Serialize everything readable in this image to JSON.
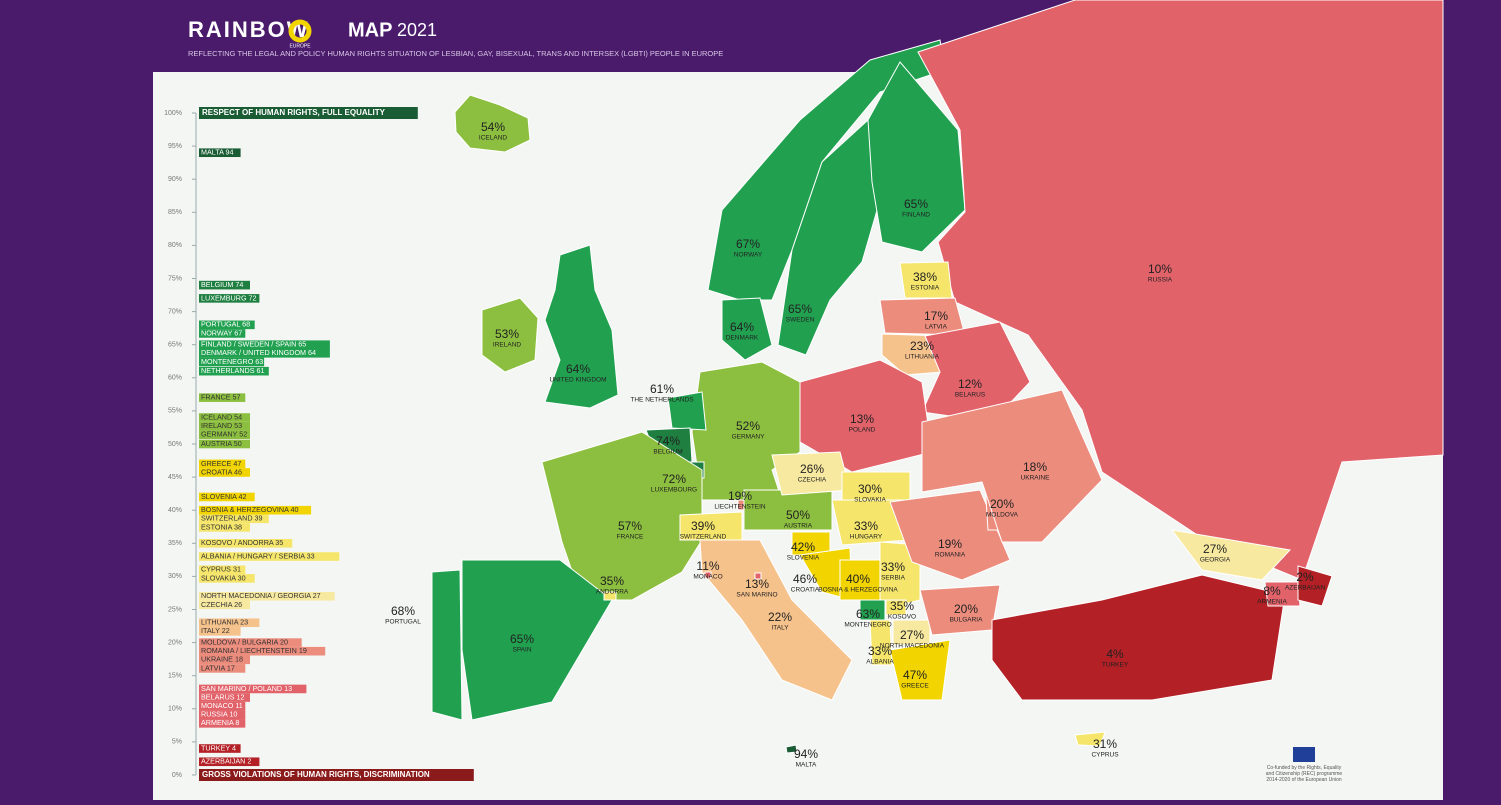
{
  "header": {
    "brand": "RAINBOW",
    "brand_sub": "EUROPE",
    "title": "MAP",
    "year": "2021",
    "subtitle": "REFLECTING THE LEGAL AND POLICY HUMAN RIGHTS SITUATION OF LESBIAN, GAY, BISEXUAL, TRANS AND INTERSEX (LGBTI) PEOPLE IN EUROPE"
  },
  "scale": {
    "top_label": "RESPECT OF HUMAN RIGHTS, FULL EQUALITY",
    "bottom_label": "GROSS VIOLATIONS OF HUMAN RIGHTS, DISCRIMINATION",
    "range": [
      0,
      100
    ],
    "ticks": [
      {
        "value": 100,
        "label": "100%"
      },
      {
        "value": 95,
        "label": "95%"
      },
      {
        "value": 90,
        "label": "90%"
      },
      {
        "value": 85,
        "label": "85%"
      },
      {
        "value": 80,
        "label": "80%"
      },
      {
        "value": 75,
        "label": "75%"
      },
      {
        "value": 70,
        "label": "70%"
      },
      {
        "value": 65,
        "label": "65%"
      },
      {
        "value": 60,
        "label": "60%"
      },
      {
        "value": 55,
        "label": "55%"
      },
      {
        "value": 50,
        "label": "50%"
      },
      {
        "value": 45,
        "label": "45%"
      },
      {
        "value": 40,
        "label": "40%"
      },
      {
        "value": 35,
        "label": "35%"
      },
      {
        "value": 30,
        "label": "30%"
      },
      {
        "value": 25,
        "label": "25%"
      },
      {
        "value": 20,
        "label": "20%"
      },
      {
        "value": 15,
        "label": "15%"
      },
      {
        "value": 10,
        "label": "10%"
      },
      {
        "value": 5,
        "label": "5%"
      },
      {
        "value": 0,
        "label": "0%"
      }
    ],
    "entries": [
      {
        "label": "MALTA 94",
        "value": 94,
        "color": "#1a5c34"
      },
      {
        "label": "BELGIUM 74",
        "value": 74,
        "color": "#1e7f40"
      },
      {
        "label": "LUXEMBURG 72",
        "value": 72,
        "color": "#1e7f40"
      },
      {
        "label": "PORTUGAL 68",
        "value": 68,
        "color": "#21a150"
      },
      {
        "label": "NORWAY 67",
        "value": 67,
        "color": "#21a150"
      },
      {
        "label": "FINLAND / SWEDEN / SPAIN 65",
        "value": 65,
        "color": "#21a150"
      },
      {
        "label": "DENMARK / UNITED KINGDOM 64",
        "value": 64,
        "color": "#21a150"
      },
      {
        "label": "MONTENEGRO 63",
        "value": 63,
        "color": "#21a150"
      },
      {
        "label": "NETHERLANDS 61",
        "value": 61,
        "color": "#21a150"
      },
      {
        "label": "FRANCE 57",
        "value": 57,
        "color": "#8cbf3f"
      },
      {
        "label": "ICELAND 54",
        "value": 54,
        "color": "#8cbf3f"
      },
      {
        "label": "IRELAND 53",
        "value": 53,
        "color": "#8cbf3f"
      },
      {
        "label": "GERMANY 52",
        "value": 52,
        "color": "#8cbf3f"
      },
      {
        "label": "AUSTRIA 50",
        "value": 50,
        "color": "#8cbf3f"
      },
      {
        "label": "GREECE 47",
        "value": 47,
        "color": "#f2d500"
      },
      {
        "label": "CROATIA 46",
        "value": 46,
        "color": "#f2d500"
      },
      {
        "label": "SLOVENIA 42",
        "value": 42,
        "color": "#f2d500"
      },
      {
        "label": "BOSNIA & HERZEGOVINA 40",
        "value": 40,
        "color": "#f2d500"
      },
      {
        "label": "SWITZERLAND 39",
        "value": 39,
        "color": "#f5e66b"
      },
      {
        "label": "ESTONIA 38",
        "value": 38,
        "color": "#f5e66b"
      },
      {
        "label": "KOSOVO / ANDORRA 35",
        "value": 35,
        "color": "#f5e66b"
      },
      {
        "label": "ALBANIA / HUNGARY / SERBIA 33",
        "value": 33,
        "color": "#f5e66b"
      },
      {
        "label": "CYPRUS 31",
        "value": 31,
        "color": "#f5e66b"
      },
      {
        "label": "SLOVAKIA 30",
        "value": 30,
        "color": "#f5e66b"
      },
      {
        "label": "NORTH MACEDONIA / GEORGIA 27",
        "value": 27,
        "color": "#f8e9a0"
      },
      {
        "label": "CZECHIA 26",
        "value": 26,
        "color": "#f8e9a0"
      },
      {
        "label": "LITHUANIA 23",
        "value": 23,
        "color": "#f6c28c"
      },
      {
        "label": "ITALY 22",
        "value": 22,
        "color": "#f6c28c"
      },
      {
        "label": "MOLDOVA / BULGARIA 20",
        "value": 20,
        "color": "#ec8c7d"
      },
      {
        "label": "ROMANIA / LIECHTENSTEIN 19",
        "value": 19,
        "color": "#ec8c7d"
      },
      {
        "label": "UKRAINE 18",
        "value": 18,
        "color": "#ec8c7d"
      },
      {
        "label": "LATVIA 17",
        "value": 17,
        "color": "#ec8c7d"
      },
      {
        "label": "SAN MARINO / POLAND 13",
        "value": 13,
        "color": "#e2626a"
      },
      {
        "label": "BELARUS 12",
        "value": 12,
        "color": "#e2626a"
      },
      {
        "label": "MONACO 11",
        "value": 11,
        "color": "#e2626a"
      },
      {
        "label": "RUSSIA 10",
        "value": 10,
        "color": "#e2626a"
      },
      {
        "label": "ARMENIA 8",
        "value": 8,
        "color": "#e2626a"
      },
      {
        "label": "TURKEY 4",
        "value": 4,
        "color": "#b32025"
      },
      {
        "label": "AZERBAIJAN 2",
        "value": 2,
        "color": "#b32025"
      }
    ]
  },
  "countries": [
    {
      "name": "ICELAND",
      "value": 54,
      "label": "54%",
      "color": "#8cbf3f"
    },
    {
      "name": "IRELAND",
      "value": 53,
      "label": "53%",
      "color": "#8cbf3f"
    },
    {
      "name": "UNITED KINGDOM",
      "value": 64,
      "label": "64%",
      "color": "#21a150"
    },
    {
      "name": "NORWAY",
      "value": 67,
      "label": "67%",
      "color": "#21a150"
    },
    {
      "name": "SWEDEN",
      "value": 65,
      "label": "65%",
      "color": "#21a150"
    },
    {
      "name": "FINLAND",
      "value": 65,
      "label": "65%",
      "color": "#21a150"
    },
    {
      "name": "RUSSIA",
      "value": 10,
      "label": "10%",
      "color": "#e2626a"
    },
    {
      "name": "ESTONIA",
      "value": 38,
      "label": "38%",
      "color": "#f5e66b"
    },
    {
      "name": "LATVIA",
      "value": 17,
      "label": "17%",
      "color": "#ec8c7d"
    },
    {
      "name": "LITHUANIA",
      "value": 23,
      "label": "23%",
      "color": "#f6c28c"
    },
    {
      "name": "BELARUS",
      "value": 12,
      "label": "12%",
      "color": "#e2626a"
    },
    {
      "name": "POLAND",
      "value": 13,
      "label": "13%",
      "color": "#e2626a"
    },
    {
      "name": "GERMANY",
      "value": 52,
      "label": "52%",
      "color": "#8cbf3f"
    },
    {
      "name": "DENMARK",
      "value": 64,
      "label": "64%",
      "color": "#21a150"
    },
    {
      "name": "THE NETHERLANDS",
      "value": 61,
      "label": "61%",
      "color": "#21a150"
    },
    {
      "name": "BELGIUM",
      "value": 74,
      "label": "74%",
      "color": "#1e7f40"
    },
    {
      "name": "LUXEMBOURG",
      "value": 72,
      "label": "72%",
      "color": "#1e7f40"
    },
    {
      "name": "FRANCE",
      "value": 57,
      "label": "57%",
      "color": "#8cbf3f"
    },
    {
      "name": "SPAIN",
      "value": 65,
      "label": "65%",
      "color": "#21a150"
    },
    {
      "name": "PORTUGAL",
      "value": 68,
      "label": "68%",
      "color": "#21a150"
    },
    {
      "name": "ANDORRA",
      "value": 35,
      "label": "35%",
      "color": "#f5e66b"
    },
    {
      "name": "SWITZERLAND",
      "value": 39,
      "label": "39%",
      "color": "#f5e66b"
    },
    {
      "name": "LIECHTENSTEIN",
      "value": 19,
      "label": "19%",
      "color": "#ec8c7d"
    },
    {
      "name": "AUSTRIA",
      "value": 50,
      "label": "50%",
      "color": "#8cbf3f"
    },
    {
      "name": "ITALY",
      "value": 22,
      "label": "22%",
      "color": "#f6c28c"
    },
    {
      "name": "MONACO",
      "value": 11,
      "label": "11%",
      "color": "#e2626a"
    },
    {
      "name": "SAN MARINO",
      "value": 13,
      "label": "13%",
      "color": "#e2626a"
    },
    {
      "name": "CZECHIA",
      "value": 26,
      "label": "26%",
      "color": "#f8e9a0"
    },
    {
      "name": "SLOVAKIA",
      "value": 30,
      "label": "30%",
      "color": "#f5e66b"
    },
    {
      "name": "HUNGARY",
      "value": 33,
      "label": "33%",
      "color": "#f5e66b"
    },
    {
      "name": "SLOVENIA",
      "value": 42,
      "label": "42%",
      "color": "#f2d500"
    },
    {
      "name": "CROATIA",
      "value": 46,
      "label": "46%",
      "color": "#f2d500"
    },
    {
      "name": "BOSNIA & HERZEGOVINA",
      "value": 40,
      "label": "40%",
      "color": "#f2d500"
    },
    {
      "name": "SERBIA",
      "value": 33,
      "label": "33%",
      "color": "#f5e66b"
    },
    {
      "name": "MONTENEGRO",
      "value": 63,
      "label": "63%",
      "color": "#21a150"
    },
    {
      "name": "KOSOVO",
      "value": 35,
      "label": "35%",
      "color": "#f5e66b"
    },
    {
      "name": "ALBANIA",
      "value": 33,
      "label": "33%",
      "color": "#f5e66b"
    },
    {
      "name": "NORTH MACEDONIA",
      "value": 27,
      "label": "27%",
      "color": "#f8e9a0"
    },
    {
      "name": "GREECE",
      "value": 47,
      "label": "47%",
      "color": "#f2d500"
    },
    {
      "name": "BULGARIA",
      "value": 20,
      "label": "20%",
      "color": "#ec8c7d"
    },
    {
      "name": "ROMANIA",
      "value": 19,
      "label": "19%",
      "color": "#ec8c7d"
    },
    {
      "name": "MOLDOVA",
      "value": 20,
      "label": "20%",
      "color": "#ec8c7d"
    },
    {
      "name": "UKRAINE",
      "value": 18,
      "label": "18%",
      "color": "#ec8c7d"
    },
    {
      "name": "TURKEY",
      "value": 4,
      "label": "4%",
      "color": "#b32025"
    },
    {
      "name": "GEORGIA",
      "value": 27,
      "label": "27%",
      "color": "#f8e9a0"
    },
    {
      "name": "ARMENIA",
      "value": 8,
      "label": "8%",
      "color": "#e2626a"
    },
    {
      "name": "AZERBAIJAN",
      "value": 2,
      "label": "2%",
      "color": "#b32025"
    },
    {
      "name": "CYPRUS",
      "value": 31,
      "label": "31%",
      "color": "#f5e66b"
    },
    {
      "name": "MALTA",
      "value": 94,
      "label": "94%",
      "color": "#1a5c34"
    }
  ],
  "footer_note": "Co-funded by the Rights, Equality and Citizenship (REC) programme 2014-2020 of the European Union"
}
